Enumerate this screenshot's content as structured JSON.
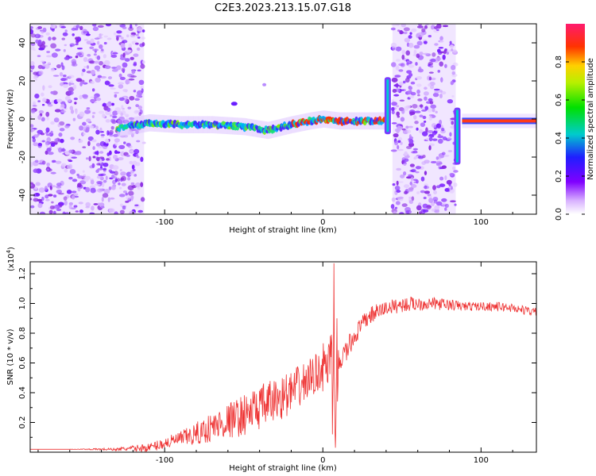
{
  "title": "C2E3.2023.213.15.07.G18",
  "colorbar": {
    "label": "Normalized spectral amplitude",
    "ticks": [
      "0.0",
      "0.2",
      "0.4",
      "0.6",
      "0.8"
    ],
    "tick_values": [
      0.0,
      0.2,
      0.4,
      0.6,
      0.8
    ],
    "range": [
      0.0,
      1.0
    ]
  },
  "chart_data": [
    {
      "type": "heatmap",
      "xlabel": "Height of straight line (km)",
      "ylabel": "Frequency (Hz)",
      "xlim": [
        -185,
        135
      ],
      "ylim": [
        -50,
        50
      ],
      "x_ticks": [
        -100,
        0,
        100
      ],
      "x_tick_labels": [
        "-100",
        "0",
        "100"
      ],
      "y_ticks": [
        -40,
        -20,
        0,
        20,
        40
      ],
      "y_tick_labels": [
        "-40",
        "-20",
        "0",
        "20",
        "40"
      ],
      "noise_regions": [
        {
          "x_from": -185,
          "x_to": -113
        },
        {
          "x_from": 44,
          "x_to": 84
        }
      ],
      "ridge": [
        {
          "x": -130,
          "freq": -5
        },
        {
          "x": -110,
          "freq": -2
        },
        {
          "x": -90,
          "freq": -3
        },
        {
          "x": -70,
          "freq": -3
        },
        {
          "x": -50,
          "freq": -4
        },
        {
          "x": -35,
          "freq": -6
        },
        {
          "x": -20,
          "freq": -3
        },
        {
          "x": -8,
          "freq": -1
        },
        {
          "x": 0,
          "freq": 0
        },
        {
          "x": 10,
          "freq": -1
        },
        {
          "x": 25,
          "freq": -1
        },
        {
          "x": 39,
          "freq": -1
        }
      ],
      "segments": [
        {
          "x": 41,
          "freq_from": -8,
          "freq_to": 22
        },
        {
          "x": 85,
          "freq_from": -24,
          "freq_to": 6
        },
        {
          "x_from": 88,
          "x_to": 135,
          "freq": -1
        }
      ]
    },
    {
      "type": "line",
      "xlabel": "Height of straight line (km)",
      "ylabel": "SNR (10 * v/v)",
      "y_scale_label": "(x10",
      "y_scale_exponent": "4",
      "y_scale_suffix": ")",
      "xlim": [
        -185,
        135
      ],
      "ylim": [
        0,
        1.28
      ],
      "x_ticks": [
        -100,
        0,
        100
      ],
      "x_tick_labels": [
        "-100",
        "0",
        "100"
      ],
      "y_ticks": [
        0.2,
        0.4,
        0.6,
        0.8,
        1.0,
        1.2
      ],
      "y_tick_labels": [
        "0.2",
        "0.4",
        "0.6",
        "0.8",
        "1.0",
        "1.2"
      ],
      "color": "#ee3333",
      "series": [
        {
          "x": [
            -185,
            -160,
            -130,
            -110,
            -100,
            -90,
            -80,
            -70,
            -60,
            -50,
            -40,
            -30,
            -20,
            -10,
            -2,
            5,
            8,
            10,
            15,
            20,
            25,
            30,
            40,
            50,
            60,
            70,
            80,
            90,
            100,
            110,
            120,
            130,
            135
          ],
          "y": [
            0.02,
            0.02,
            0.02,
            0.03,
            0.06,
            0.09,
            0.12,
            0.17,
            0.21,
            0.25,
            0.3,
            0.35,
            0.4,
            0.48,
            0.55,
            0.6,
            0.28,
            0.6,
            0.68,
            0.78,
            0.86,
            0.92,
            0.97,
            0.99,
            1.0,
            1.0,
            0.99,
            0.98,
            0.98,
            0.98,
            0.97,
            0.95,
            0.94
          ],
          "noise": [
            0,
            0,
            0.01,
            0.03,
            0.04,
            0.05,
            0.08,
            0.1,
            0.12,
            0.14,
            0.15,
            0.15,
            0.15,
            0.14,
            0.13,
            0.25,
            0.2,
            0.1,
            0.08,
            0.07,
            0.06,
            0.06,
            0.05,
            0.05,
            0.05,
            0.04,
            0.04,
            0.03,
            0.03,
            0.03,
            0.03,
            0.03,
            0.03
          ],
          "spikes": [
            {
              "x": 7,
              "y": 1.27
            },
            {
              "x": 8,
              "y": 0.03
            },
            {
              "x": 9,
              "y": 0.9
            },
            {
              "x": 6,
              "y": 0.12
            }
          ]
        }
      ]
    }
  ]
}
